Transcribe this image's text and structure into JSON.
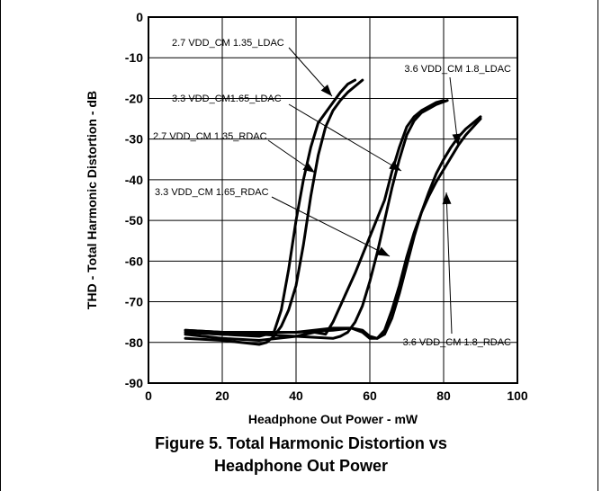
{
  "chart_data": {
    "type": "line",
    "xlabel": "Headphone Out Power - mW",
    "ylabel": "THD - Total Harmonic Distortion - dB",
    "xlim": [
      0,
      100
    ],
    "ylim": [
      -90,
      0
    ],
    "xticks": [
      0,
      20,
      40,
      60,
      80,
      100
    ],
    "yticks": [
      0,
      -10,
      -20,
      -30,
      -40,
      -50,
      -60,
      -70,
      -80,
      -90
    ],
    "grid": true,
    "series": [
      {
        "name": "2.7  VDD_CM 1.35_LDAC",
        "x": [
          10,
          20,
          30,
          34,
          36,
          38,
          40,
          42,
          44,
          46,
          48,
          50,
          52,
          54,
          56
        ],
        "y": [
          -77.5,
          -78,
          -78.5,
          -77.5,
          -72,
          -62,
          -50,
          -40,
          -32,
          -26,
          -23.5,
          -21,
          -18.5,
          -16.5,
          -15.5
        ]
      },
      {
        "name": "2.7 VDD_CM 1.35_RDAC",
        "x": [
          10,
          20,
          30,
          32,
          34,
          36,
          38,
          40,
          42,
          44,
          46,
          48,
          50,
          52,
          54,
          56,
          58
        ],
        "y": [
          -79,
          -79.5,
          -80.5,
          -80,
          -78.5,
          -76,
          -72,
          -66,
          -56,
          -44,
          -34,
          -27,
          -23,
          -20.5,
          -18.5,
          -17,
          -15.5
        ]
      },
      {
        "name": "3.3  VDD_CM1.65_LDAC",
        "x": [
          10,
          20,
          30,
          40,
          45,
          48,
          50,
          52,
          56,
          60,
          64,
          66,
          68,
          70,
          72,
          74,
          76,
          78,
          80
        ],
        "y": [
          -78,
          -79,
          -79.5,
          -78.5,
          -77.5,
          -78,
          -75,
          -71,
          -63,
          -54,
          -45,
          -38,
          -32,
          -27,
          -24.5,
          -23,
          -22,
          -21,
          -20.5
        ]
      },
      {
        "name": "3.3 VDD_CM 1.65_RDAC",
        "x": [
          10,
          20,
          30,
          40,
          50,
          52,
          54,
          56,
          58,
          60,
          62,
          64,
          66,
          68,
          70,
          72,
          74,
          76,
          78,
          81
        ],
        "y": [
          -77.5,
          -78,
          -78,
          -78.5,
          -79,
          -78.5,
          -77.5,
          -75,
          -71,
          -65,
          -58,
          -50,
          -42,
          -35,
          -29,
          -25.5,
          -23.5,
          -22.5,
          -21.5,
          -20.5
        ]
      },
      {
        "name": "3.6 VDD_CM 1.8_LDAC",
        "x": [
          10,
          20,
          30,
          40,
          50,
          55,
          58,
          60,
          62,
          64,
          66,
          68,
          70,
          72,
          74,
          76,
          78,
          80,
          82,
          84,
          86,
          88,
          90
        ],
        "y": [
          -77,
          -77.5,
          -77.5,
          -77.5,
          -77,
          -76.5,
          -77,
          -78.5,
          -79,
          -78,
          -74,
          -68,
          -61,
          -54,
          -48,
          -43,
          -38.5,
          -35,
          -32,
          -29.5,
          -27.5,
          -26,
          -24.5
        ]
      },
      {
        "name": "3.6 VDD_CM 1.8_RDAC",
        "x": [
          10,
          20,
          30,
          40,
          50,
          55,
          58,
          60,
          62,
          64,
          66,
          68,
          70,
          72,
          74,
          76,
          78,
          80,
          82,
          84,
          86,
          88,
          90
        ],
        "y": [
          -77,
          -77.5,
          -77.5,
          -77.5,
          -76.5,
          -76.5,
          -77.5,
          -79,
          -79,
          -77,
          -72,
          -66,
          -59,
          -53,
          -48,
          -44,
          -40.5,
          -37.5,
          -34.5,
          -31.5,
          -29,
          -27,
          -25
        ]
      }
    ]
  },
  "caption": {
    "line1": "Figure 5. Total Harmonic Distortion vs",
    "line2": "Headphone Out Power"
  }
}
